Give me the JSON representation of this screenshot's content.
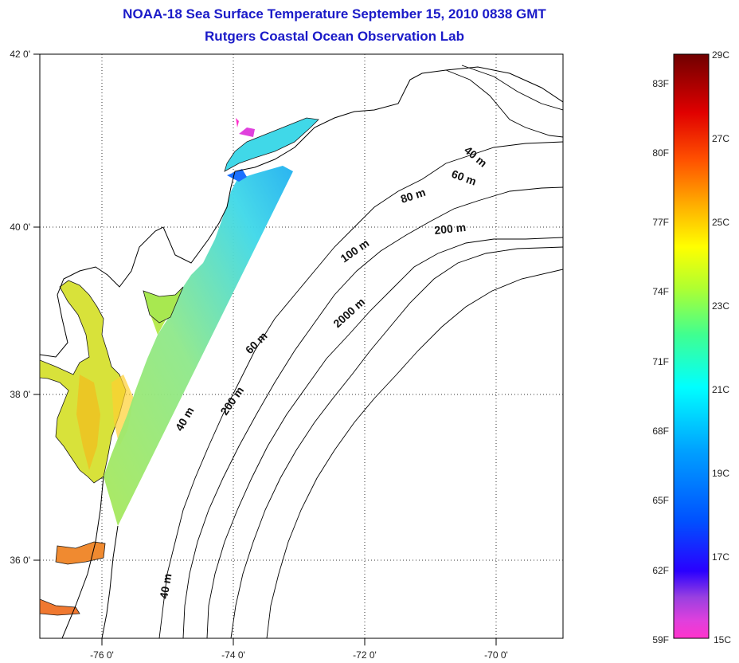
{
  "title": {
    "line1": "NOAA-18 Sea Surface Temperature September 15, 2010 0838 GMT",
    "line2": "Rutgers Coastal Ocean Observation Lab"
  },
  "map": {
    "lat_labels": [
      "42 0'",
      "40 0'",
      "38 0'",
      "36 0'"
    ],
    "lon_labels": [
      "-76 0'",
      "-74 0'",
      "-72 0'",
      "-70 0'"
    ],
    "isobath_labels": [
      "40 m",
      "60 m",
      "80 m",
      "200 m",
      "100 m",
      "2000 m",
      "60 m",
      "200 m",
      "40 m",
      "40 m"
    ]
  },
  "colorbar": {
    "celsius_labels": [
      "29C",
      "27C",
      "25C",
      "23C",
      "21C",
      "19C",
      "17C",
      "15C"
    ],
    "fahrenheit_labels": [
      "83F",
      "80F",
      "77F",
      "74F",
      "71F",
      "68F",
      "65F",
      "62F",
      "59F"
    ],
    "colors": [
      "#ff33cc",
      "#c060d0",
      "#2a00ff",
      "#0060ff",
      "#00c8ff",
      "#00ffe0",
      "#40ff90",
      "#c0ff30",
      "#ffff00",
      "#ffb000",
      "#ff6000",
      "#ff1a00",
      "#c00000",
      "#800000"
    ]
  }
}
